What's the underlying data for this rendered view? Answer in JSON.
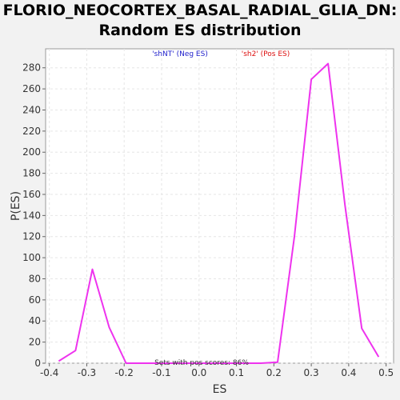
{
  "chart_data": {
    "type": "line",
    "title_line1": "FLORIO_NEOCORTEX_BASAL_RADIAL_GLIA_DN:",
    "title_line2": "Random ES distribution",
    "xlabel": "ES",
    "ylabel": "P(ES)",
    "xlim": [
      -0.41,
      0.52
    ],
    "ylim": [
      0,
      298
    ],
    "x_ticks": [
      -0.4,
      -0.3,
      -0.2,
      -0.1,
      0.0,
      0.1,
      0.2,
      0.3,
      0.4,
      0.5
    ],
    "x_tick_labels": [
      "-0.4",
      "-0.3",
      "-0.2",
      "-0.1",
      "0.0",
      "0.1",
      "0.2",
      "0.3",
      "0.4",
      "0.5"
    ],
    "y_ticks": [
      0,
      20,
      40,
      60,
      80,
      100,
      120,
      140,
      160,
      180,
      200,
      220,
      240,
      260,
      280
    ],
    "y_tick_labels": [
      "0",
      "20",
      "40",
      "60",
      "80",
      "100",
      "120",
      "140",
      "160",
      "180",
      "200",
      "220",
      "240",
      "260",
      "280"
    ],
    "grid": true,
    "legend": [
      {
        "label": "'shNT' (Neg ES)",
        "color": "#2222cc"
      },
      {
        "label": "'sh2' (Pos ES)",
        "color": "#dd1111"
      }
    ],
    "annotation": "Sets with pos scores: 86%",
    "series": [
      {
        "color": "#ee33ee",
        "x": [
          -0.375,
          -0.33,
          -0.285,
          -0.24,
          -0.195,
          -0.15,
          -0.105,
          -0.06,
          -0.015,
          0.03,
          0.075,
          0.12,
          0.165,
          0.21,
          0.255,
          0.3,
          0.345,
          0.39,
          0.435,
          0.48
        ],
        "y": [
          2,
          12,
          89,
          34,
          0,
          0,
          0,
          0,
          0,
          0,
          0,
          0,
          0,
          1,
          120,
          269,
          284,
          150,
          33,
          6
        ]
      }
    ]
  }
}
